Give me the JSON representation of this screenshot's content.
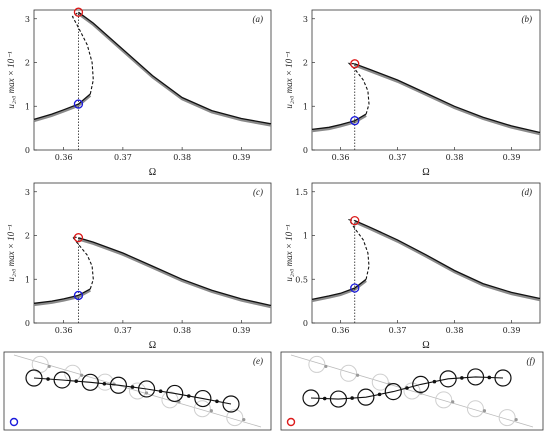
{
  "figure": {
    "panels": [
      {
        "label": "(a)",
        "ylabel": "u₂,₀ max × 10⁻¹"
      },
      {
        "label": "(b)",
        "ylabel": "u₂,₀ max × 10⁻¹"
      },
      {
        "label": "(c)",
        "ylabel": "u₂,₀ max × 10⁻¹"
      },
      {
        "label": "(d)",
        "ylabel": "u₂,₀ max × 10⁻¹"
      }
    ],
    "xlabel": "Ω",
    "shape_panels": [
      {
        "label": "(e)",
        "marker": "blue"
      },
      {
        "label": "(f)",
        "marker": "red"
      }
    ]
  },
  "colors": {
    "stable": "#111111",
    "numeric": "#8a8a8a",
    "blue_marker": "#1a1adc",
    "red_marker": "#dc1a1a"
  },
  "chart_data": [
    {
      "type": "line",
      "title": "",
      "xlabel": "Ω",
      "ylabel": "u₂,₀ max × 10⁻¹",
      "xlim": [
        0.355,
        0.395
      ],
      "ylim": [
        0,
        3.2
      ],
      "xticks": [
        "0.36",
        "0.37",
        "0.38",
        "0.39"
      ],
      "yticks": [
        "0",
        "1",
        "2",
        "3"
      ],
      "upper_branch": {
        "x": [
          0.3625,
          0.365,
          0.37,
          0.375,
          0.38,
          0.385,
          0.39,
          0.395
        ],
        "y": [
          3.15,
          2.9,
          2.3,
          1.7,
          1.2,
          0.9,
          0.72,
          0.6
        ]
      },
      "lower_branch": {
        "x": [
          0.355,
          0.358,
          0.36,
          0.3625,
          0.3645
        ],
        "y": [
          0.7,
          0.82,
          0.92,
          1.05,
          1.28
        ]
      },
      "unstable_branch": {
        "x": [
          0.3645,
          0.365,
          0.3648,
          0.364,
          0.3625,
          0.3615,
          0.3625
        ],
        "y": [
          1.28,
          1.6,
          2.0,
          2.4,
          2.8,
          3.05,
          3.15
        ]
      },
      "markers": [
        {
          "color": "red",
          "x": 0.3625,
          "y": 3.15
        },
        {
          "color": "blue",
          "x": 0.3625,
          "y": 1.05
        }
      ],
      "vline_x": 0.3625
    },
    {
      "type": "line",
      "title": "",
      "xlabel": "Ω",
      "ylabel": "u₂,₀ max × 10⁻¹",
      "xlim": [
        0.355,
        0.395
      ],
      "ylim": [
        0,
        3.2
      ],
      "xticks": [
        "0.36",
        "0.37",
        "0.38",
        "0.39"
      ],
      "yticks": [
        "0",
        "1",
        "2",
        "3"
      ],
      "upper_branch": {
        "x": [
          0.3625,
          0.365,
          0.37,
          0.375,
          0.38,
          0.385,
          0.39,
          0.395
        ],
        "y": [
          1.97,
          1.85,
          1.6,
          1.3,
          1.0,
          0.75,
          0.55,
          0.4
        ]
      },
      "lower_branch": {
        "x": [
          0.355,
          0.358,
          0.36,
          0.3625,
          0.3645
        ],
        "y": [
          0.47,
          0.52,
          0.58,
          0.67,
          0.82
        ]
      },
      "unstable_branch": {
        "x": [
          0.3645,
          0.365,
          0.3648,
          0.364,
          0.3625,
          0.3615,
          0.3625
        ],
        "y": [
          0.82,
          1.05,
          1.35,
          1.6,
          1.85,
          1.98,
          1.97
        ]
      },
      "markers": [
        {
          "color": "red",
          "x": 0.3625,
          "y": 1.97
        },
        {
          "color": "blue",
          "x": 0.3625,
          "y": 0.67
        }
      ],
      "vline_x": 0.3625
    },
    {
      "type": "line",
      "title": "",
      "xlabel": "Ω",
      "ylabel": "u₂,₀ max × 10⁻¹",
      "xlim": [
        0.355,
        0.395
      ],
      "ylim": [
        0,
        3.2
      ],
      "xticks": [
        "0.36",
        "0.37",
        "0.38",
        "0.39"
      ],
      "yticks": [
        "0",
        "1",
        "2",
        "3"
      ],
      "upper_branch": {
        "x": [
          0.3625,
          0.365,
          0.37,
          0.375,
          0.38,
          0.385,
          0.39,
          0.395
        ],
        "y": [
          1.95,
          1.85,
          1.6,
          1.3,
          1.0,
          0.75,
          0.55,
          0.4
        ]
      },
      "lower_branch": {
        "x": [
          0.355,
          0.358,
          0.36,
          0.3625,
          0.3645
        ],
        "y": [
          0.45,
          0.5,
          0.55,
          0.63,
          0.78
        ]
      },
      "unstable_branch": {
        "x": [
          0.3645,
          0.365,
          0.3648,
          0.364,
          0.3625,
          0.3615,
          0.3625
        ],
        "y": [
          0.78,
          1.0,
          1.3,
          1.55,
          1.8,
          1.97,
          1.95
        ]
      },
      "markers": [
        {
          "color": "red",
          "x": 0.3625,
          "y": 1.95
        },
        {
          "color": "blue",
          "x": 0.3625,
          "y": 0.63
        }
      ],
      "vline_x": 0.3625
    },
    {
      "type": "line",
      "title": "",
      "xlabel": "Ω",
      "ylabel": "u₂,₀ max × 10⁻¹",
      "xlim": [
        0.355,
        0.395
      ],
      "ylim": [
        0,
        1.6
      ],
      "xticks": [
        "0.36",
        "0.37",
        "0.38",
        "0.39"
      ],
      "yticks": [
        "0",
        "0.5",
        "1",
        "1.5"
      ],
      "upper_branch": {
        "x": [
          0.3625,
          0.365,
          0.37,
          0.375,
          0.38,
          0.385,
          0.39,
          0.395
        ],
        "y": [
          1.17,
          1.1,
          0.95,
          0.78,
          0.6,
          0.45,
          0.35,
          0.28
        ]
      },
      "lower_branch": {
        "x": [
          0.355,
          0.358,
          0.36,
          0.3625,
          0.3645
        ],
        "y": [
          0.27,
          0.31,
          0.34,
          0.4,
          0.5
        ]
      },
      "unstable_branch": {
        "x": [
          0.3645,
          0.365,
          0.3648,
          0.364,
          0.3625,
          0.3615,
          0.3625
        ],
        "y": [
          0.5,
          0.65,
          0.8,
          0.95,
          1.08,
          1.18,
          1.17
        ]
      },
      "markers": [
        {
          "color": "red",
          "x": 0.3625,
          "y": 1.17
        },
        {
          "color": "blue",
          "x": 0.3625,
          "y": 0.4
        }
      ],
      "vline_x": 0.3625
    }
  ]
}
